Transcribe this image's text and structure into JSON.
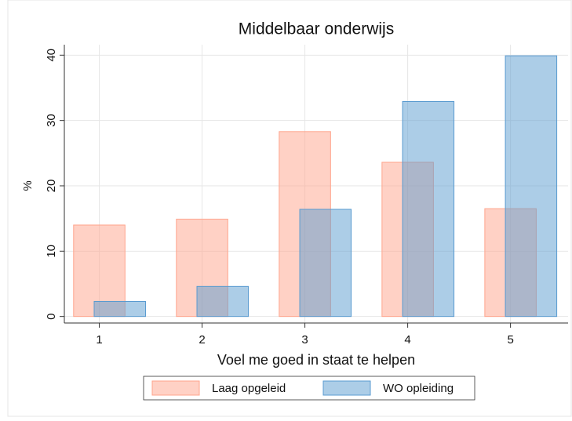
{
  "chart_data": {
    "type": "bar",
    "title": "Middelbaar onderwijs",
    "xlabel": "Voel me goed in staat te helpen",
    "ylabel": "%",
    "bar_width": 0.5,
    "series": [
      {
        "name": "Laag opgeleid",
        "color": "#ffa48c",
        "x": [
          1,
          2,
          3,
          4,
          5
        ],
        "values": [
          14.0,
          14.9,
          28.3,
          23.6,
          16.5
        ]
      },
      {
        "name": "WO opleiding",
        "color": "#5a9bd0",
        "x": [
          1.2,
          2.2,
          3.2,
          4.2,
          5.2
        ],
        "values": [
          2.3,
          4.6,
          16.4,
          32.9,
          39.9
        ]
      }
    ],
    "xlim": [
      0.66,
      5.56
    ],
    "xticks": [
      1,
      2,
      3,
      4,
      5
    ],
    "ylim": [
      -1,
      41.6
    ],
    "yticks": [
      0,
      10,
      20,
      30,
      40
    ],
    "grid": true,
    "legend": "bottom"
  }
}
